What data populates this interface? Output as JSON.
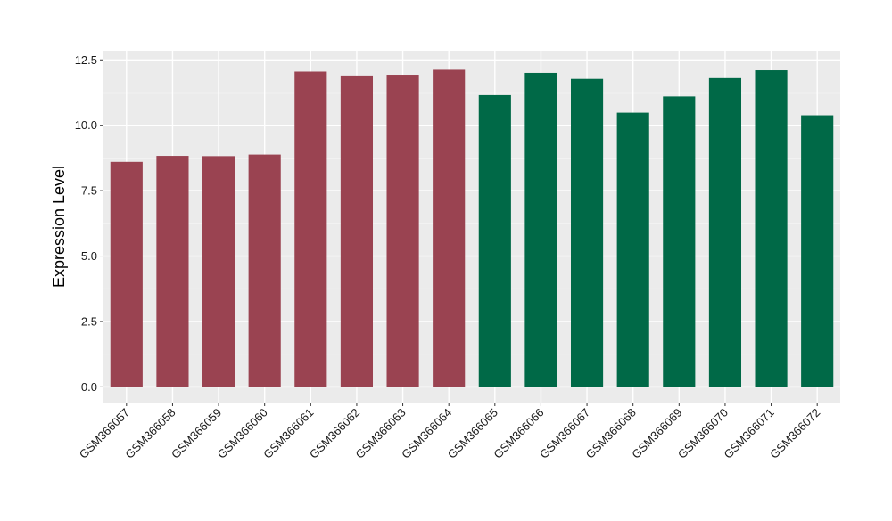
{
  "chart_data": {
    "type": "bar",
    "title": "",
    "xlabel": "",
    "ylabel": "Expression Level",
    "ylim": [
      -0.6,
      12.85
    ],
    "yticks": [
      0.0,
      2.5,
      5.0,
      7.5,
      10.0,
      12.5
    ],
    "ytick_labels": [
      "0.0",
      "2.5",
      "5.0",
      "7.5",
      "10.0",
      "12.5"
    ],
    "grid": true,
    "legend": "none",
    "categories": [
      "GSM366057",
      "GSM366058",
      "GSM366059",
      "GSM366060",
      "GSM366061",
      "GSM366062",
      "GSM366063",
      "GSM366064",
      "GSM366065",
      "GSM366066",
      "GSM366067",
      "GSM366068",
      "GSM366069",
      "GSM366070",
      "GSM366071",
      "GSM366072"
    ],
    "values": [
      8.6,
      8.83,
      8.82,
      8.88,
      12.05,
      11.9,
      11.93,
      12.12,
      11.15,
      12.0,
      11.77,
      10.48,
      11.1,
      11.8,
      12.1,
      10.38
    ],
    "bar_groups": [
      0,
      0,
      0,
      0,
      0,
      0,
      0,
      0,
      1,
      1,
      1,
      1,
      1,
      1,
      1,
      1
    ],
    "colors": {
      "group_colors": [
        "#9A4351",
        "#006947"
      ],
      "panel_background": "#EBEBEB",
      "grid_major": "#FFFFFF",
      "grid_minor": "#F5F5F5",
      "tick_color": "#333333",
      "text_color": "#1A1A1A"
    }
  }
}
